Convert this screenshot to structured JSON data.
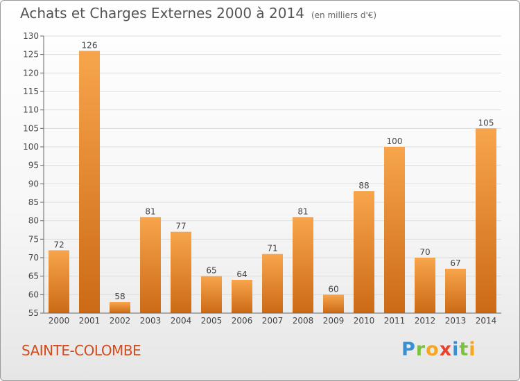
{
  "header": {
    "title": "Achats et Charges Externes 2000 à 2014",
    "subtitle": "(en milliers d'€)"
  },
  "footer": {
    "commune": "SAINTE-COLOMBE",
    "logo_letters": [
      "P",
      "r",
      "o",
      "x",
      "i",
      "t",
      "i"
    ]
  },
  "colors": {
    "bar_light": "#f7a54c",
    "bar_dark": "#cc6a15",
    "commune": "#d24b1c",
    "grid": "#dddddd"
  },
  "chart_data": {
    "type": "bar",
    "categories": [
      "2000",
      "2001",
      "2002",
      "2003",
      "2004",
      "2005",
      "2006",
      "2007",
      "2008",
      "2009",
      "2010",
      "2011",
      "2012",
      "2013",
      "2014"
    ],
    "values": [
      72,
      126,
      58,
      81,
      77,
      65,
      64,
      71,
      81,
      60,
      88,
      100,
      70,
      67,
      105
    ],
    "ylim": [
      55,
      130
    ],
    "yticks": [
      55,
      60,
      65,
      70,
      75,
      80,
      85,
      90,
      95,
      100,
      105,
      110,
      115,
      120,
      125,
      130
    ],
    "grid": true,
    "data_labels": true
  }
}
